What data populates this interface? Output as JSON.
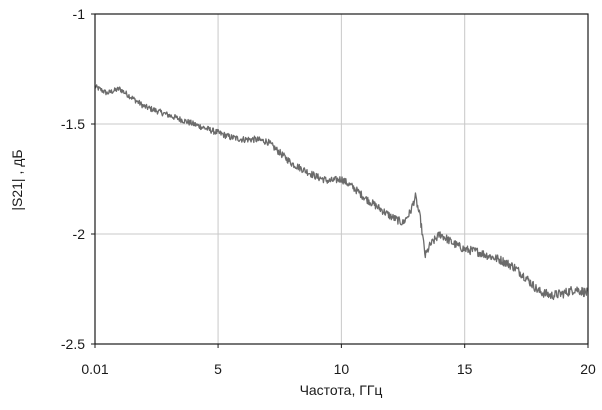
{
  "chart_data": {
    "type": "line",
    "xlabel": "Частота, ГГц",
    "ylabel": "|S21| , дБ",
    "xlim": [
      0.01,
      20
    ],
    "ylim": [
      -2.5,
      -1
    ],
    "grid": true,
    "x_ticks": [
      0.01,
      5,
      10,
      15,
      20
    ],
    "x_tick_labels": [
      "0.01",
      "5",
      "10",
      "15",
      "20"
    ],
    "y_ticks": [
      -2.5,
      -2,
      -1.5,
      -1
    ],
    "y_tick_labels": [
      "-2.5",
      "-2",
      "-1.5",
      "-1"
    ],
    "series": [
      {
        "color": "#6b6b6b",
        "x": [
          0.01,
          0.5,
          1.0,
          1.5,
          2.0,
          2.5,
          3.0,
          3.5,
          4.0,
          4.5,
          5.0,
          5.5,
          6.0,
          6.5,
          7.0,
          7.5,
          8.0,
          8.5,
          9.0,
          9.5,
          10.0,
          10.5,
          11.0,
          11.5,
          12.0,
          12.5,
          12.8,
          13.0,
          13.2,
          13.4,
          13.6,
          14.0,
          14.5,
          15.0,
          15.5,
          16.0,
          16.5,
          17.0,
          17.5,
          18.0,
          18.5,
          19.0,
          19.5,
          20.0
        ],
        "y": [
          -1.33,
          -1.36,
          -1.34,
          -1.38,
          -1.42,
          -1.44,
          -1.46,
          -1.48,
          -1.5,
          -1.52,
          -1.54,
          -1.56,
          -1.57,
          -1.57,
          -1.58,
          -1.63,
          -1.68,
          -1.71,
          -1.74,
          -1.76,
          -1.75,
          -1.79,
          -1.84,
          -1.88,
          -1.92,
          -1.95,
          -1.9,
          -1.83,
          -1.93,
          -2.1,
          -2.05,
          -2.0,
          -2.04,
          -2.07,
          -2.08,
          -2.1,
          -2.12,
          -2.15,
          -2.2,
          -2.26,
          -2.28,
          -2.27,
          -2.25,
          -2.27
        ]
      }
    ]
  }
}
